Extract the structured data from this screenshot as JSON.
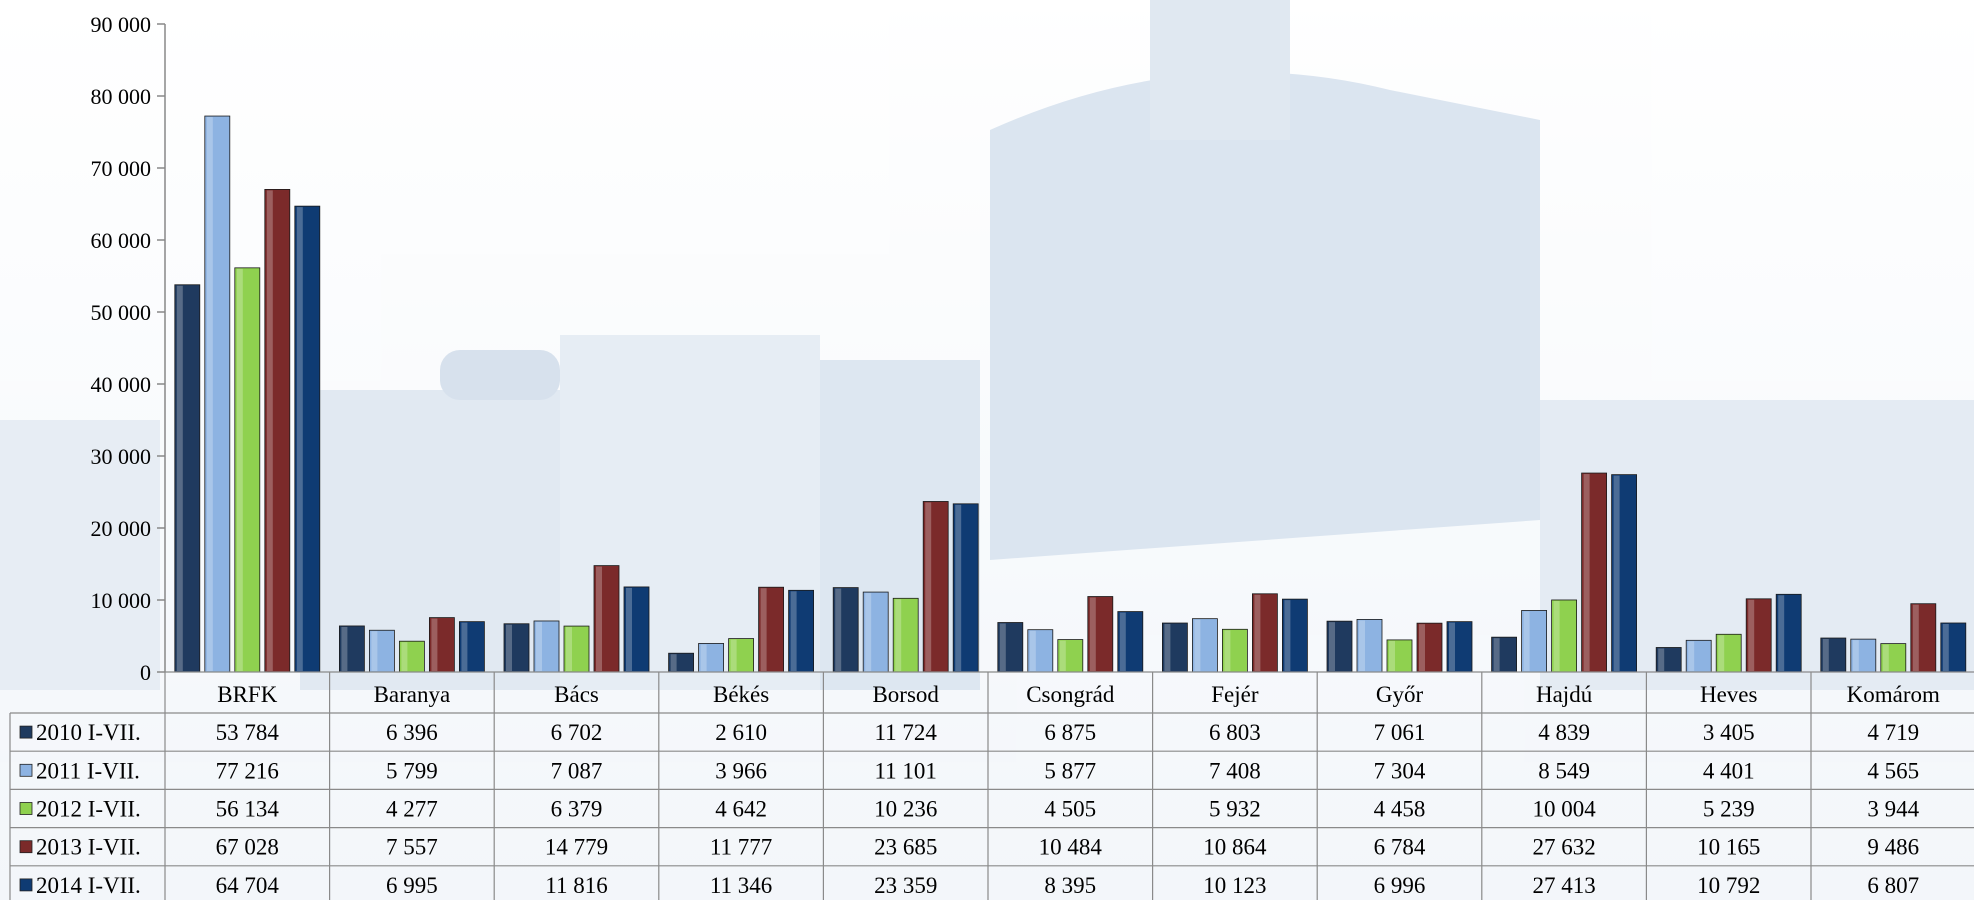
{
  "chart_data": {
    "type": "bar",
    "categories": [
      "BRFK",
      "Baranya",
      "Bács",
      "Békés",
      "Borsod",
      "Csongrád",
      "Fejér",
      "Győr",
      "Hajdú",
      "Heves",
      "Komárom"
    ],
    "series": [
      {
        "name": "2010 I-VII.",
        "color": "#1f3a5f",
        "values": [
          53784,
          6396,
          6702,
          2610,
          11724,
          6875,
          6803,
          7061,
          4839,
          3405,
          4719
        ],
        "labels": [
          "53 784",
          "6 396",
          "6 702",
          "2 610",
          "11 724",
          "6 875",
          "6 803",
          "7 061",
          "4 839",
          "3 405",
          "4 719"
        ]
      },
      {
        "name": "2011 I-VII.",
        "color": "#8db3e2",
        "values": [
          77216,
          5799,
          7087,
          3966,
          11101,
          5877,
          7408,
          7304,
          8549,
          4401,
          4565
        ],
        "labels": [
          "77 216",
          "5 799",
          "7 087",
          "3 966",
          "11 101",
          "5 877",
          "7 408",
          "7 304",
          "8 549",
          "4 401",
          "4 565"
        ]
      },
      {
        "name": "2012 I-VII.",
        "color": "#8fd14f",
        "values": [
          56134,
          4277,
          6379,
          4642,
          10236,
          4505,
          5932,
          4458,
          10004,
          5239,
          3944
        ],
        "labels": [
          "56 134",
          "4 277",
          "6 379",
          "4 642",
          "10 236",
          "4 505",
          "5 932",
          "4 458",
          "10 004",
          "5 239",
          "3 944"
        ]
      },
      {
        "name": "2013 I-VII.",
        "color": "#7b2a2a",
        "values": [
          67028,
          7557,
          14779,
          11777,
          23685,
          10484,
          10864,
          6784,
          27632,
          10165,
          9486
        ],
        "labels": [
          "67 028",
          "7 557",
          "14 779",
          "11 777",
          "23 685",
          "10 484",
          "10 864",
          "6 784",
          "27 632",
          "10 165",
          "9 486"
        ]
      },
      {
        "name": "2014 I-VII.",
        "color": "#0f3b73",
        "values": [
          64704,
          6995,
          11816,
          11346,
          23359,
          8395,
          10123,
          6996,
          27413,
          10792,
          6807
        ],
        "labels": [
          "64 704",
          "6 995",
          "11 816",
          "11 346",
          "23 359",
          "8 395",
          "10 123",
          "6 996",
          "27 413",
          "10 792",
          "6 807"
        ]
      }
    ],
    "ylim": [
      0,
      90000
    ],
    "yticks": [
      0,
      10000,
      20000,
      30000,
      40000,
      50000,
      60000,
      70000,
      80000,
      90000
    ],
    "ytick_labels": [
      "0",
      "10 000",
      "20 000",
      "30 000",
      "40 000",
      "50 000",
      "60 000",
      "70 000",
      "80 000",
      "90 000"
    ],
    "grid": false,
    "legend": "data-table"
  }
}
